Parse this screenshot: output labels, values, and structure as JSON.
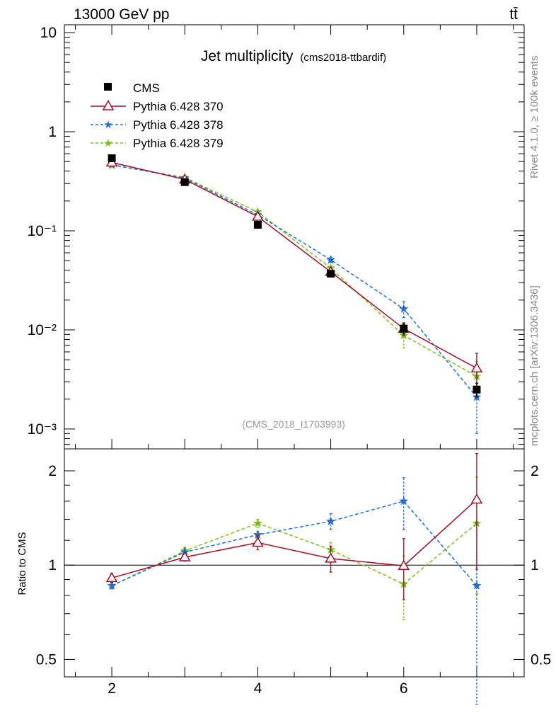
{
  "header": {
    "energy_label": "13000 GeV pp",
    "process_label": "tt̄"
  },
  "side_labels": {
    "rivet": "Rivet 4.1.0, ≥ 100k events",
    "source": "mcplots.cern.ch [arXiv:1306.3436]"
  },
  "colors": {
    "cms": "#000000",
    "pythia370": "#a00d24",
    "pythia378": "#1f6fd6",
    "pythia379": "#7cbf17"
  },
  "chart_data": {
    "type": "line",
    "title": "Jet multiplicity",
    "subtitle": "(cms2018-ttbardif)",
    "analysis_label": "(CMS_2018_I1703993)",
    "x": [
      2,
      3,
      4,
      5,
      6,
      7
    ],
    "xlim": [
      1.35,
      7.65
    ],
    "xticks": [
      "2",
      "4",
      "6"
    ],
    "main_panel": {
      "yscale": "log",
      "ylim": [
        0.00063,
        12
      ],
      "yticks": [
        "10",
        "1",
        "10⁻¹",
        "10⁻²",
        "10⁻³"
      ],
      "series": [
        {
          "name": "CMS",
          "style": "data",
          "values": [
            0.54,
            0.31,
            0.115,
            0.037,
            0.0103,
            0.0025
          ],
          "err": [
            0.02,
            0.01,
            0.005,
            0.002,
            0.0012,
            0.0004
          ]
        },
        {
          "name": "Pythia 6.428 370",
          "style": "solid",
          "marker": "triangle",
          "values": [
            0.49,
            0.33,
            0.139,
            0.0385,
            0.0103,
            0.0041
          ],
          "err": [
            0.01,
            0.005,
            0.004,
            0.0015,
            0.0015,
            0.0017
          ]
        },
        {
          "name": "Pythia 6.428 378",
          "style": "dashed",
          "marker": "star",
          "values": [
            0.465,
            0.34,
            0.145,
            0.051,
            0.0163,
            0.0021
          ],
          "err": [
            0.01,
            0.006,
            0.004,
            0.003,
            0.003,
            0.0012
          ]
        },
        {
          "name": "Pythia 6.428 379",
          "style": "dashed",
          "marker": "star",
          "values": [
            0.46,
            0.345,
            0.155,
            0.042,
            0.0088,
            0.0034
          ],
          "err": [
            0.01,
            0.006,
            0.004,
            0.002,
            0.0022,
            0.0014
          ]
        }
      ]
    },
    "ratio_panel": {
      "ylabel": "Ratio to CMS",
      "yscale": "log",
      "ylim": [
        0.44,
        2.35
      ],
      "yticks": [
        "2",
        "1",
        "0.5"
      ],
      "series": [
        {
          "name": "Pythia 6.428 370",
          "values": [
            0.91,
            1.06,
            1.18,
            1.05,
            0.995,
            1.62
          ],
          "err": [
            0.03,
            0.03,
            0.06,
            0.1,
            0.22,
            0.65
          ]
        },
        {
          "name": "Pythia 6.428 378",
          "values": [
            0.86,
            1.1,
            1.25,
            1.38,
            1.6,
            0.86
          ],
          "err": [
            0.02,
            0.03,
            0.03,
            0.08,
            0.3,
            0.5
          ]
        },
        {
          "name": "Pythia 6.428 379",
          "values": [
            0.86,
            1.11,
            1.36,
            1.12,
            0.87,
            1.36
          ],
          "err": [
            0.02,
            0.03,
            0.04,
            0.06,
            0.2,
            0.55
          ]
        }
      ]
    }
  }
}
